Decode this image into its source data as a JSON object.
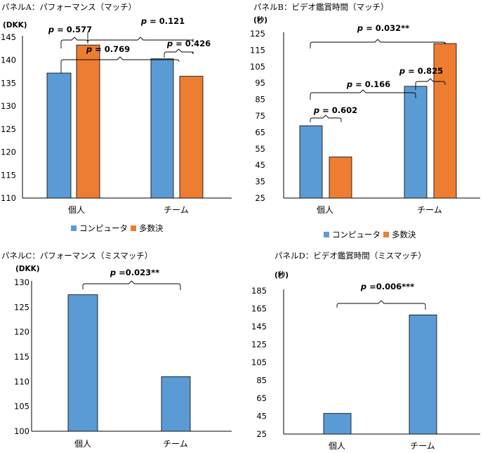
{
  "colors": {
    "computer": "#5B9BD5",
    "majority": "#ED7D31",
    "axis": "#000000",
    "bracket": "#000000",
    "bar_stroke": "#000000"
  },
  "legend": {
    "computer": "コンピュータ",
    "majority": "多数決"
  },
  "panels": {
    "A": {
      "title": "パネルA：パフォーマンス（マッチ）",
      "unit": "(DKK)"
    },
    "B": {
      "title": "パネルB：ビデオ鑑賞時間（マッチ）",
      "unit": "(秒)"
    },
    "C": {
      "title": "パネルC：パフォーマンス（ミスマッチ）",
      "unit": "(DKK)"
    },
    "D": {
      "title": "パネルD：ビデオ鑑賞時間（ミスマッチ）",
      "unit": "(秒)"
    }
  },
  "chart_data": [
    {
      "id": "A",
      "type": "bar",
      "title": "パネルA：パフォーマンス（マッチ）",
      "ylabel": "(DKK)",
      "categories": [
        "個人",
        "チーム"
      ],
      "series": [
        {
          "name": "コンピュータ",
          "values": [
            137.2,
            140.3
          ]
        },
        {
          "name": "多数決",
          "values": [
            143.3,
            136.5
          ]
        }
      ],
      "ylim": [
        110,
        145
      ],
      "yticks": [
        "110",
        "115",
        "120",
        "125",
        "130",
        "135",
        "140",
        "145"
      ],
      "annotations": [
        {
          "p": "p",
          "text": " = 0.577",
          "between": "個人: コンピュータ vs 多数決"
        },
        {
          "p": "p",
          "text": " = 0.121",
          "between": "多数決: 個人 vs チーム"
        },
        {
          "p": "p",
          "text": " = 0.769",
          "between": "コンピュータ: 個人 vs チーム"
        },
        {
          "p": "p",
          "text": " = 0.426",
          "between": "チーム: コンピュータ vs 多数決"
        }
      ]
    },
    {
      "id": "B",
      "type": "bar",
      "title": "パネルB：ビデオ鑑賞時間（マッチ）",
      "ylabel": "(秒)",
      "categories": [
        "個人",
        "チーム"
      ],
      "series": [
        {
          "name": "コンピュータ",
          "values": [
            69,
            93
          ]
        },
        {
          "name": "多数決",
          "values": [
            50,
            119
          ]
        }
      ],
      "ylim": [
        25,
        125
      ],
      "yticks": [
        "25",
        "35",
        "45",
        "55",
        "65",
        "75",
        "85",
        "95",
        "105",
        "115",
        "125"
      ],
      "annotations": [
        {
          "p": "p",
          "text": " = 0.032**",
          "between": "多数決: 個人 vs チーム"
        },
        {
          "p": "p",
          "text": " = 0.825",
          "between": "チーム: コンピュータ vs 多数決"
        },
        {
          "p": "p",
          "text": " = 0.166",
          "between": "コンピュータ: 個人 vs チーム"
        },
        {
          "p": "p",
          "text": " = 0.602",
          "between": "個人: コンピュータ vs 多数決"
        }
      ]
    },
    {
      "id": "C",
      "type": "bar",
      "title": "パネルC：パフォーマンス（ミスマッチ）",
      "ylabel": "(DKK)",
      "categories": [
        "個人",
        "チーム"
      ],
      "series": [
        {
          "name": "",
          "values": [
            127.5,
            111
          ]
        }
      ],
      "ylim": [
        100,
        130
      ],
      "yticks": [
        "100",
        "105",
        "110",
        "115",
        "120",
        "125",
        "130"
      ],
      "annotations": [
        {
          "p": "p",
          "text": " =0.023**",
          "between": "個人 vs チーム"
        }
      ]
    },
    {
      "id": "D",
      "type": "bar",
      "title": "パネルD：ビデオ鑑賞時間（ミスマッチ）",
      "ylabel": "(秒)",
      "categories": [
        "個人",
        "チーム"
      ],
      "series": [
        {
          "name": "",
          "values": [
            48,
            158
          ]
        }
      ],
      "ylim": [
        25,
        185
      ],
      "yticks": [
        "25",
        "45",
        "65",
        "85",
        "105",
        "125",
        "145",
        "165",
        "185"
      ],
      "annotations": [
        {
          "p": "p",
          "text": " =0.006***",
          "between": "個人 vs チーム"
        }
      ]
    }
  ]
}
